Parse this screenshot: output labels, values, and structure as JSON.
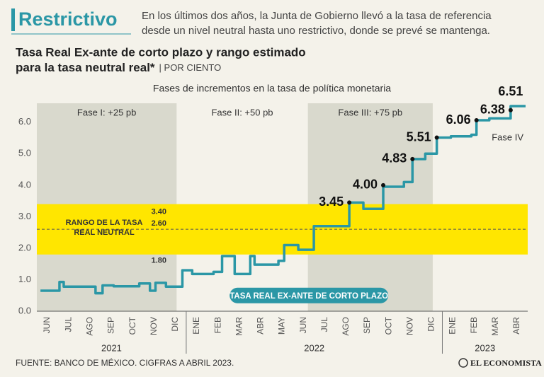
{
  "header": {
    "title": "Restrictivo",
    "description": [
      "En los últimos dos años, la Junta de Gobierno llevó a la tasa de referencia",
      "desde un nivel neutral hasta uno restrictivo, donde se prevé se mantenga."
    ]
  },
  "chart_data": {
    "type": "line",
    "title": [
      "Tasa Real Ex-ante de corto plazo y rango estimado",
      "para la tasa neutral real*"
    ],
    "unit": "| POR CIENTO",
    "subtitle": "Fases de incrementos en la tasa de política monetaria",
    "xlim": [
      0,
      23
    ],
    "xticks": [
      {
        "value": 0.5,
        "label": "JUN"
      },
      {
        "value": 1.5,
        "label": "JUL"
      },
      {
        "value": 2.5,
        "label": "AGO"
      },
      {
        "value": 3.5,
        "label": "SEP"
      },
      {
        "value": 4.5,
        "label": "OCT"
      },
      {
        "value": 5.5,
        "label": "NOV"
      },
      {
        "value": 6.5,
        "label": "DIC"
      },
      {
        "value": 7.5,
        "label": "ENE"
      },
      {
        "value": 8.5,
        "label": "FEB"
      },
      {
        "value": 9.5,
        "label": "MAR"
      },
      {
        "value": 10.5,
        "label": "ABR"
      },
      {
        "value": 11.5,
        "label": "MAY"
      },
      {
        "value": 12.5,
        "label": "JUN"
      },
      {
        "value": 13.5,
        "label": "JUL"
      },
      {
        "value": 14.5,
        "label": "AGO"
      },
      {
        "value": 15.5,
        "label": "SEP"
      },
      {
        "value": 16.5,
        "label": "OCT"
      },
      {
        "value": 17.5,
        "label": "NOV"
      },
      {
        "value": 18.5,
        "label": "DIC"
      },
      {
        "value": 19.5,
        "label": "ENE"
      },
      {
        "value": 20.5,
        "label": "FEB"
      },
      {
        "value": 21.5,
        "label": "MAR"
      },
      {
        "value": 22.5,
        "label": "ABR"
      }
    ],
    "years": [
      {
        "label": "2021",
        "start": 0,
        "end": 7
      },
      {
        "label": "2022",
        "start": 7,
        "end": 19
      },
      {
        "label": "2023",
        "start": 19,
        "end": 23
      }
    ],
    "ylim": [
      0,
      6.6
    ],
    "yticks": [
      {
        "value": 0,
        "label": "0.0"
      },
      {
        "value": 1,
        "label": "1.0"
      },
      {
        "value": 2,
        "label": "2.0"
      },
      {
        "value": 3,
        "label": "3.0"
      },
      {
        "value": 4,
        "label": "4.0"
      },
      {
        "value": 5,
        "label": "5.0"
      },
      {
        "value": 6,
        "label": "6.0"
      }
    ],
    "grid": false,
    "phases": [
      {
        "label": "Fase I: +25 pb",
        "start": 0,
        "end": 6.55,
        "shaded": true
      },
      {
        "label": "Fase II: +50 pb",
        "start": 6.55,
        "end": 12.7,
        "shaded": false
      },
      {
        "label": "Fase III: +75 pb",
        "start": 12.7,
        "end": 18.55,
        "shaded": true
      },
      {
        "label": "Fase IV",
        "start": 18.55,
        "end": 23,
        "shaded": false
      }
    ],
    "band": {
      "label": [
        "RANGO DE LA TASA",
        "REAL NEUTRAL"
      ],
      "from": 1.8,
      "to": 3.4,
      "mid": 2.6,
      "value_labels": [
        "1.80",
        "3.40",
        "2.60"
      ],
      "color": "#ffe600"
    },
    "series": [
      {
        "name": "TASA REAL EX-ANTE DE CORTO PLAZO",
        "color": "#2b97a6",
        "x": [
          0.17,
          1.06,
          1.06,
          1.26,
          1.26,
          2.75,
          2.75,
          3.08,
          3.08,
          3.6,
          3.6,
          4.8,
          4.8,
          5.3,
          5.3,
          5.56,
          5.56,
          6.05,
          6.05,
          6.82,
          6.82,
          7.28,
          7.28,
          8.28,
          8.28,
          8.68,
          8.68,
          9.27,
          9.27,
          10.0,
          10.0,
          10.2,
          10.2,
          11.32,
          11.32,
          11.59,
          11.59,
          12.25,
          12.25,
          12.98,
          12.98,
          14.64,
          14.64,
          15.3,
          15.3,
          16.23,
          16.23,
          17.2,
          17.2,
          17.6,
          17.6,
          18.2,
          18.2,
          18.74,
          18.74,
          19.4,
          19.4,
          20.36,
          20.36,
          20.6,
          20.6,
          21.2,
          21.2,
          22.2,
          22.2,
          22.9
        ],
        "values": [
          0.65,
          0.65,
          0.93,
          0.93,
          0.78,
          0.78,
          0.57,
          0.57,
          0.82,
          0.82,
          0.79,
          0.79,
          0.88,
          0.88,
          0.65,
          0.65,
          0.9,
          0.9,
          0.78,
          0.78,
          1.3,
          1.3,
          1.18,
          1.18,
          1.25,
          1.25,
          1.75,
          1.75,
          1.18,
          1.18,
          1.75,
          1.75,
          1.48,
          1.48,
          1.6,
          1.6,
          2.1,
          2.1,
          1.95,
          1.95,
          2.7,
          2.7,
          3.45,
          3.45,
          3.25,
          3.25,
          3.95,
          3.95,
          4.1,
          4.1,
          4.83,
          4.83,
          5.0,
          5.0,
          5.51,
          5.51,
          5.55,
          5.55,
          5.6,
          5.6,
          6.06,
          6.06,
          6.12,
          6.12,
          6.51,
          6.51
        ]
      }
    ],
    "annotations": [
      {
        "x": 14.64,
        "value": 3.45
      },
      {
        "x": 16.23,
        "value": 4,
        "label": "4.00"
      },
      {
        "x": 17.6,
        "value": 4.83
      },
      {
        "x": 18.74,
        "value": 5.51
      },
      {
        "x": 20.6,
        "value": 6.06
      },
      {
        "x": 22.2,
        "value": 6.38
      },
      {
        "x": 22.2,
        "value": 6.51
      }
    ]
  },
  "footer": {
    "source": "FUENTE: BANCO DE MÉXICO. CIGFRAS A ABRIL 2023.",
    "logo": "EL ECONOMISTA"
  }
}
